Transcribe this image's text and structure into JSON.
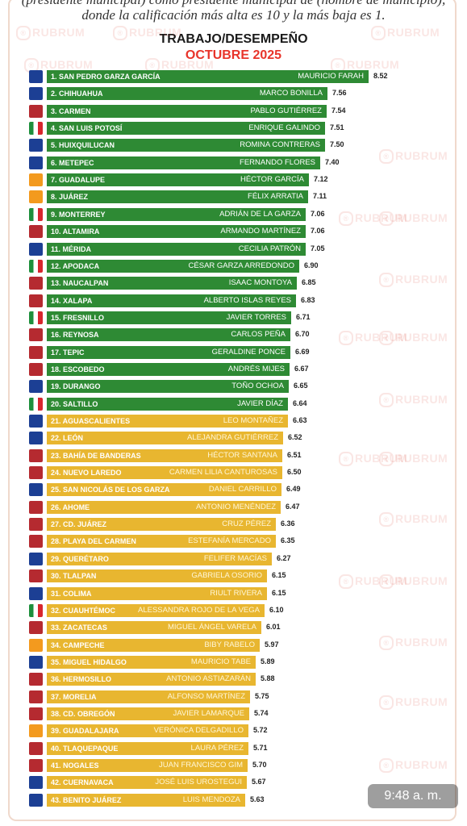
{
  "header": {
    "intro_line1": "(presidente municipal) como presidente municipal de (nombre de municipio),",
    "intro_line2": "donde la calificación más alta es 10 y la más baja es 1.",
    "title": "TRABAJO/DESEMPEÑO",
    "subtitle": "OCTUBRE 2025"
  },
  "watermark": "RUBRUM",
  "status_time": "9:48 a. m.",
  "colors": {
    "green": "#2e8a34",
    "yellow": "#e8b630",
    "title_red": "#e8342a"
  },
  "chart_data": {
    "type": "bar",
    "orientation": "horizontal",
    "title": "TRABAJO/DESEMPEÑO",
    "subtitle": "OCTUBRE 2025",
    "categories": [
      "1. SAN PEDRO GARZA GARCÍA",
      "2. CHIHUAHUA",
      "3. CARMEN",
      "4. SAN LUIS POTOSÍ",
      "5. HUIXQUILUCAN",
      "6. METEPEC",
      "7. GUADALUPE",
      "8. JUÁREZ",
      "9. MONTERREY",
      "10. ALTAMIRA",
      "11. MÉRIDA",
      "12. APODACA",
      "13. NAUCALPAN",
      "14. XALAPA",
      "15. FRESNILLO",
      "16. REYNOSA",
      "17. TEPIC",
      "18. ESCOBEDO",
      "19. DURANGO",
      "20. SALTILLO",
      "21. AGUASCALIENTES",
      "22. LEÓN",
      "23. BAHÍA DE BANDERAS",
      "24. NUEVO LAREDO",
      "25. SAN NICOLÁS DE LOS GARZA",
      "26. AHOME",
      "27. CD. JUÁREZ",
      "28. PLAYA DEL CARMEN",
      "29. QUERÉTARO",
      "30. TLALPAN",
      "31. COLIMA",
      "32. CUAUHTÉMOC",
      "33. ZACATECAS",
      "34. CAMPECHE",
      "35. MIGUEL HIDALGO",
      "36. HERMOSILLO",
      "37. MORELIA",
      "38. CD. OBREGÓN",
      "39. GUADALAJARA",
      "40. TLAQUEPAQUE",
      "41. NOGALES",
      "42. CUERNAVACA",
      "43. BENITO JUÁREZ"
    ],
    "mayors": [
      "MAURICIO FARAH",
      "MARCO BONILLA",
      "PABLO GUTIÉRREZ",
      "ENRIQUE GALINDO",
      "ROMINA CONTRERAS",
      "FERNANDO FLORES",
      "HÉCTOR GARCÍA",
      "FÉLIX ARRATIA",
      "ADRIÁN DE LA GARZA",
      "ARMANDO MARTÍNEZ",
      "CECILIA PATRÓN",
      "CÉSAR GARZA ARREDONDO",
      "ISAAC MONTOYA",
      "ALBERTO ISLAS REYES",
      "JAVIER TORRES",
      "CARLOS PEÑA",
      "GERALDINE PONCE",
      "ANDRÉS MIJES",
      "TOÑO OCHOA",
      "JAVIER DÍAZ",
      "LEO MONTAÑEZ",
      "ALEJANDRA GUTIÉRREZ",
      "HÉCTOR SANTANA",
      "CARMEN LILIA CANTUROSAS",
      "DANIEL CARRILLO",
      "ANTONIO MENÉNDEZ",
      "CRUZ PÉREZ",
      "ESTEFANÍA MERCADO",
      "FELIFER MACÍAS",
      "GABRIELA OSORIO",
      "RIULT RIVERA",
      "ALESSANDRA ROJO DE LA VEGA",
      "MIGUEL ÁNGEL VARELA",
      "BIBY RABELO",
      "MAURICIO TABE",
      "ANTONIO ASTIAZARÁN",
      "ALFONSO MARTÍNEZ",
      "JAVIER LAMARQUE",
      "VERÓNICA DELGADILLO",
      "LAURA PÉREZ",
      "JUAN FRANCISCO GIM",
      "JOSÉ LUIS UROSTEGUI",
      "LUIS MENDOZA"
    ],
    "values": [
      8.52,
      7.56,
      7.54,
      7.51,
      7.5,
      7.4,
      7.12,
      7.11,
      7.06,
      7.06,
      7.05,
      6.9,
      6.85,
      6.83,
      6.71,
      6.7,
      6.69,
      6.67,
      6.65,
      6.64,
      6.63,
      6.52,
      6.51,
      6.5,
      6.49,
      6.47,
      6.36,
      6.35,
      6.27,
      6.15,
      6.15,
      6.1,
      6.01,
      5.97,
      5.89,
      5.88,
      5.75,
      5.74,
      5.72,
      5.71,
      5.7,
      5.67,
      5.63
    ],
    "value_labels": [
      "8.52",
      "7.56",
      "7.54",
      "7.51",
      "7.50",
      "7.40",
      "7.12",
      "7.11",
      "7.06",
      "7.06",
      "7.05",
      "6.90",
      "6.85",
      "6.83",
      "6.71",
      "6.70",
      "6.69",
      "6.67",
      "6.65",
      "6.64",
      "6.63",
      "6.52",
      "6.51",
      "6.50",
      "6.49",
      "6.47",
      "6.36",
      "6.35",
      "6.27",
      "6.15",
      "6.15",
      "6.10",
      "6.01",
      "5.97",
      "5.89",
      "5.88",
      "5.75",
      "5.74",
      "5.72",
      "5.71",
      "5.70",
      "5.67",
      "5.63"
    ],
    "parties": [
      "PAN",
      "PAN",
      "MORENA",
      "PRI",
      "PAN",
      "PAN",
      "MC",
      "MC",
      "PRI",
      "MORENA",
      "PAN",
      "PRI",
      "MORENA",
      "MORENA",
      "PRI",
      "MORENA",
      "MORENA",
      "MORENA",
      "PAN",
      "PRI",
      "PAN",
      "PAN",
      "MORENA",
      "MORENA",
      "PAN",
      "MORENA",
      "MORENA",
      "MORENA",
      "PAN",
      "MORENA",
      "PAN",
      "PRI",
      "MORENA",
      "MC",
      "PAN",
      "MORENA",
      "MORENA",
      "MORENA",
      "MC",
      "MORENA",
      "MORENA",
      "PAN",
      "PAN"
    ],
    "bar_colors": [
      "green",
      "green",
      "green",
      "green",
      "green",
      "green",
      "green",
      "green",
      "green",
      "green",
      "green",
      "green",
      "green",
      "green",
      "green",
      "green",
      "green",
      "green",
      "green",
      "green",
      "yellow",
      "yellow",
      "yellow",
      "yellow",
      "yellow",
      "yellow",
      "yellow",
      "yellow",
      "yellow",
      "yellow",
      "yellow",
      "yellow",
      "yellow",
      "yellow",
      "yellow",
      "yellow",
      "yellow",
      "yellow",
      "yellow",
      "yellow",
      "yellow",
      "yellow",
      "yellow"
    ],
    "xlim": [
      1,
      10
    ]
  }
}
